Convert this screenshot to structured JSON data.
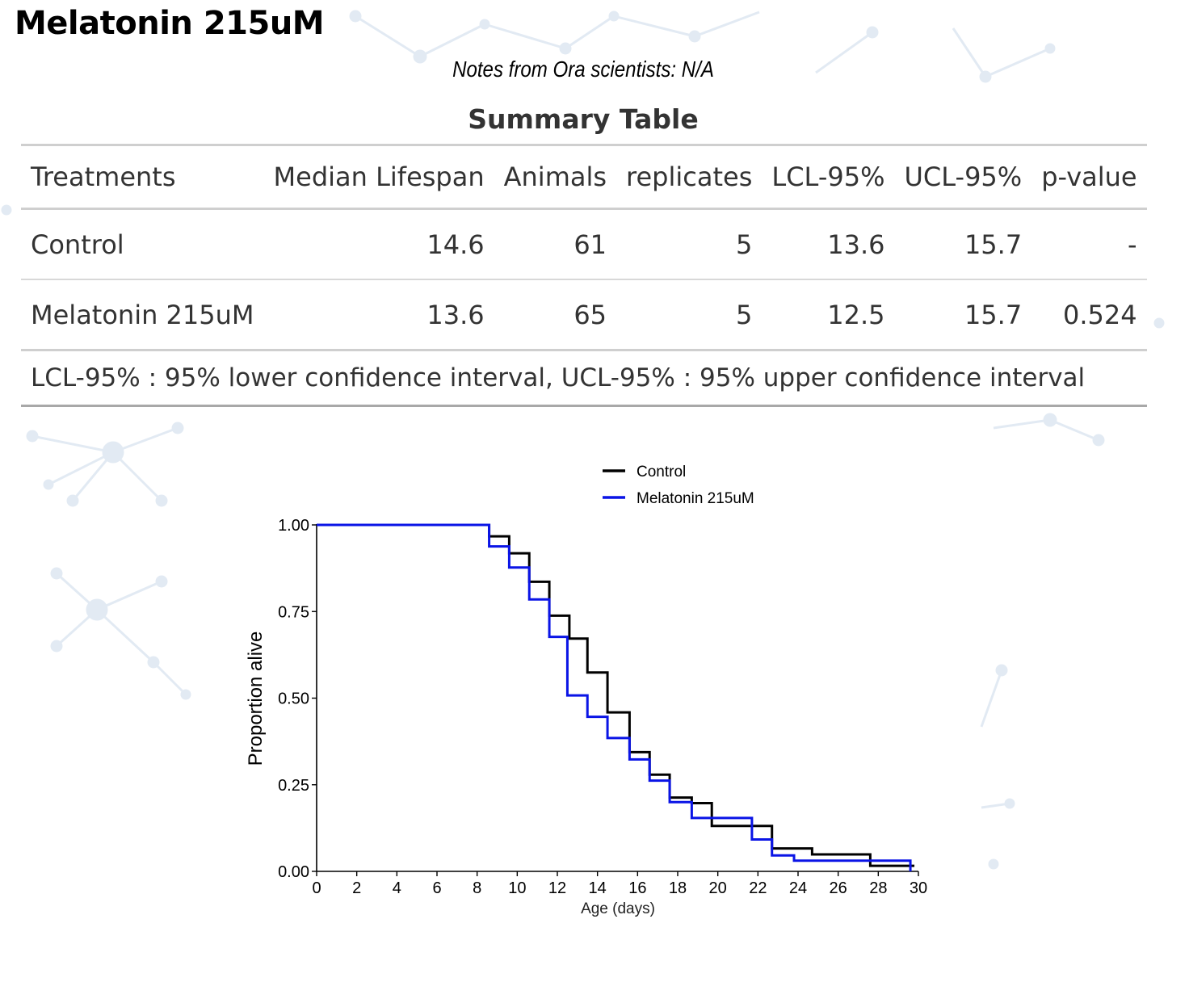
{
  "page_title": "Melatonin 215uM",
  "notes": "Notes from Ora scientists: N/A",
  "summary": {
    "title": "Summary Table",
    "columns": [
      "Treatments",
      "Median Lifespan",
      "Animals",
      "replicates",
      "LCL-95%",
      "UCL-95%",
      "p-value"
    ],
    "rows": [
      [
        "Control",
        "14.6",
        "61",
        "5",
        "13.6",
        "15.7",
        "-"
      ],
      [
        "Melatonin 215uM",
        "13.6",
        "65",
        "5",
        "12.5",
        "15.7",
        "0.524"
      ]
    ],
    "footnote": "LCL-95% : 95% lower confidence interval, UCL-95% : 95% upper confidence interval"
  },
  "colors": {
    "control": "#000000",
    "melatonin": "#0a14e6",
    "background_network": "#dfe8f2"
  },
  "chart_data": {
    "type": "line",
    "step": true,
    "title": "",
    "xlabel": "Age (days)",
    "ylabel": "Proportion alive",
    "xlim": [
      0,
      30
    ],
    "ylim": [
      0,
      1
    ],
    "x_ticks": [
      0,
      2,
      4,
      6,
      8,
      10,
      12,
      14,
      16,
      18,
      20,
      22,
      24,
      26,
      28,
      30
    ],
    "y_ticks": [
      0.0,
      0.25,
      0.5,
      0.75,
      1.0
    ],
    "y_tick_labels": [
      "0.00",
      "0.25",
      "0.50",
      "0.75",
      "1.00"
    ],
    "legend": [
      "Control",
      "Melatonin 215uM"
    ],
    "legend_position": "top",
    "series": [
      {
        "name": "Control",
        "color": "#000000",
        "x": [
          0,
          8.6,
          9.6,
          10.6,
          11.6,
          12.6,
          13.5,
          14.5,
          15.6,
          16.6,
          17.6,
          18.7,
          19.7,
          21.7,
          22.7,
          24.7,
          27.6,
          29.8
        ],
        "y": [
          1.0,
          0.967,
          0.918,
          0.836,
          0.738,
          0.672,
          0.574,
          0.459,
          0.344,
          0.279,
          0.213,
          0.197,
          0.131,
          0.131,
          0.066,
          0.049,
          0.016,
          0.016
        ]
      },
      {
        "name": "Melatonin 215uM",
        "color": "#0a14e6",
        "x": [
          0,
          8.6,
          9.6,
          10.6,
          11.6,
          12.5,
          13.5,
          14.5,
          15.6,
          16.6,
          17.6,
          18.7,
          19.7,
          21.7,
          22.7,
          23.8,
          27.6,
          29.6
        ],
        "y": [
          1.0,
          0.938,
          0.877,
          0.785,
          0.677,
          0.508,
          0.446,
          0.385,
          0.323,
          0.262,
          0.2,
          0.154,
          0.154,
          0.092,
          0.046,
          0.031,
          0.031,
          0.0
        ]
      }
    ]
  }
}
